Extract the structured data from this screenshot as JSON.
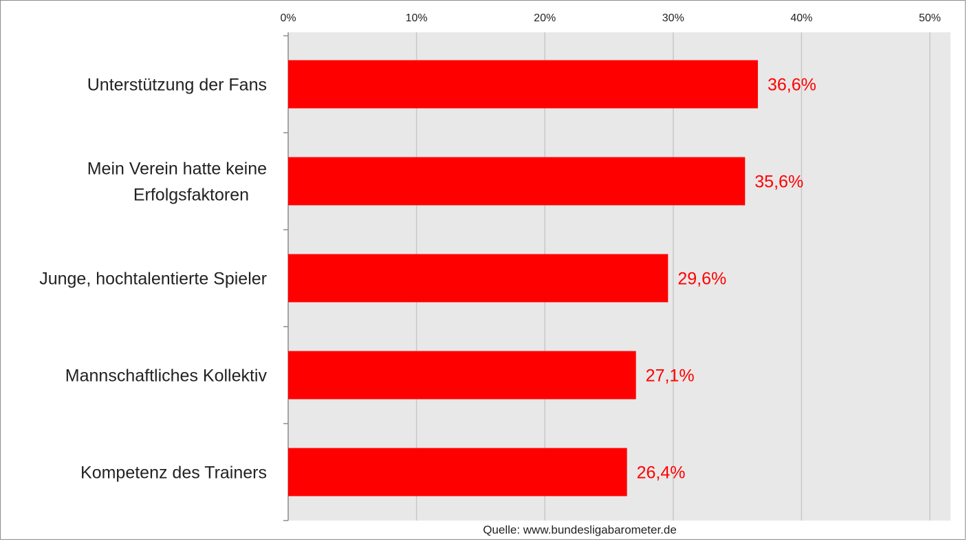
{
  "chart_data": {
    "type": "bar",
    "orientation": "horizontal",
    "categories": [
      [
        "Unterstützung der Fans"
      ],
      [
        "Mein Verein hatte keine",
        "Erfolgsfaktoren"
      ],
      [
        "Junge, hochtalentierte Spieler"
      ],
      [
        "Mannschaftliches Kollektiv"
      ],
      [
        "Kompetenz des Trainers"
      ]
    ],
    "values": [
      36.6,
      35.6,
      29.6,
      27.1,
      26.4
    ],
    "value_labels": [
      "36,6%",
      "35,6%",
      "29,6%",
      "27,1%",
      "26,4%"
    ],
    "x_ticks": [
      "0%",
      "10%",
      "20%",
      "30%",
      "40%",
      "50%"
    ],
    "xlim": [
      0,
      50
    ],
    "x_axis_position": "top",
    "grid": true,
    "bar_color": "#ff0000",
    "label_color": "#ff0000",
    "plot_background": "#e8e8e8",
    "source": "Quelle: www.bundesligabarometer.de"
  }
}
